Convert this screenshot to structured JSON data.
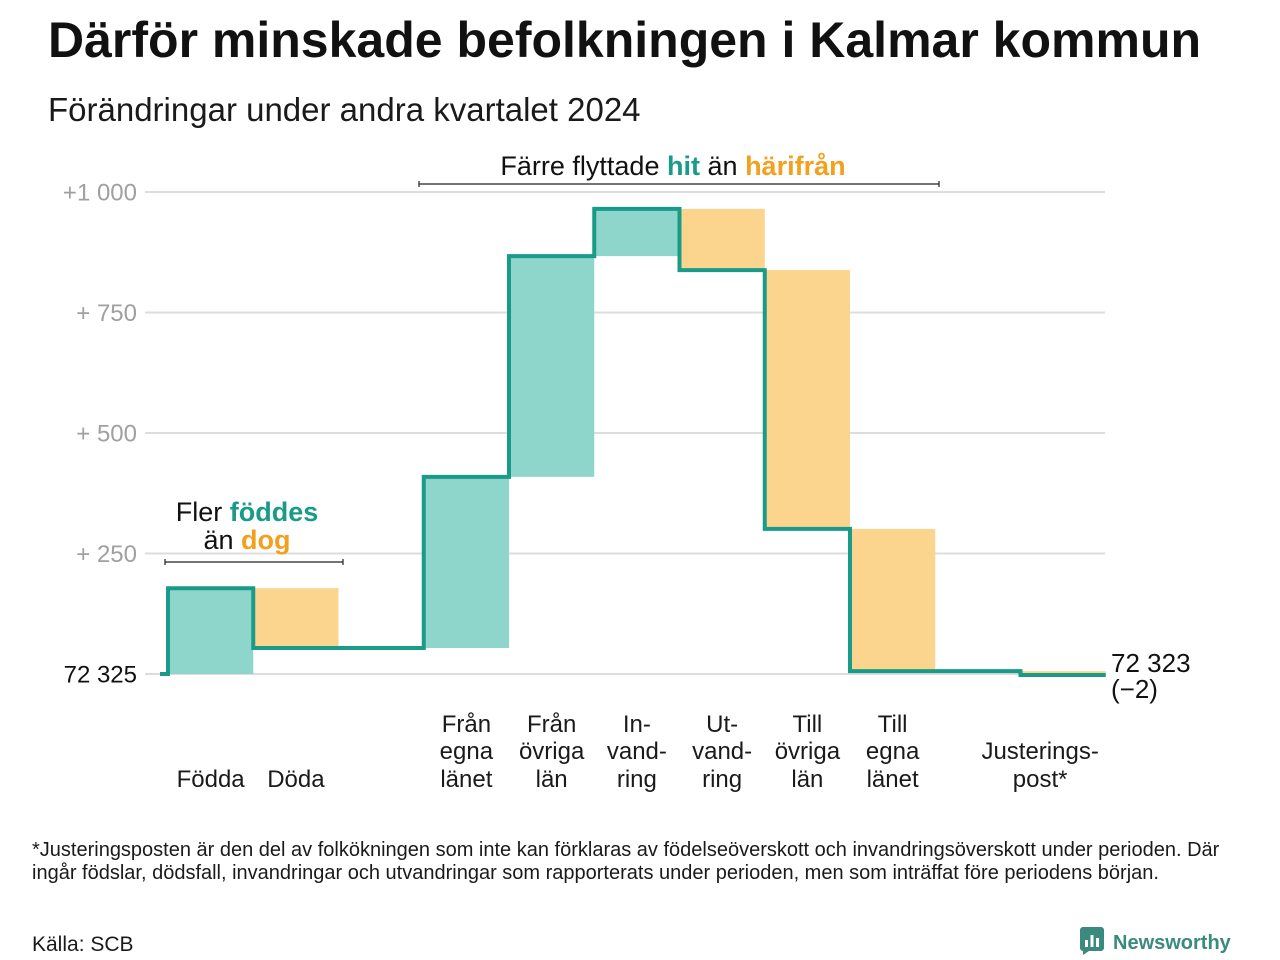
{
  "title": "Därför minskade befolkningen i Kalmar kommun",
  "subtitle": "Förändringar under andra kvartalet 2024",
  "chart_data": {
    "type": "bar",
    "waterfall": true,
    "start_value": 72325,
    "start_label": "72 325",
    "categories": [
      "Födda",
      "Döda",
      "Från\negna\nlänet",
      "Från\növriga\nlän",
      "In-\nvand-\nring",
      "Ut-\nvand-\nring",
      "Till\növriga\nlän",
      "Till\negna\nlänet",
      "Justerings-\npost*"
    ],
    "values": [
      178,
      -124,
      355,
      458,
      98,
      -127,
      -537,
      -295,
      -8
    ],
    "ylim": [
      0,
      1000
    ],
    "yticks": [
      {
        "value": 1000,
        "label": "+1 000"
      },
      {
        "value": 750,
        "label": "+ 750"
      },
      {
        "value": 500,
        "label": "+ 500"
      },
      {
        "value": 250,
        "label": "+ 250"
      }
    ],
    "end_value": 72323,
    "end_label": "72 323",
    "end_change_label": "(−2)",
    "grid": true,
    "annotations": {
      "births": {
        "prefix": "Fler",
        "highlight_in": "föddes",
        "middle": "än",
        "highlight_out": "dog"
      },
      "moves": {
        "prefix": "Färre flyttade",
        "highlight_in": "hit",
        "middle": "än",
        "highlight_out": "härifrån"
      }
    },
    "colors": {
      "increase": "#8ed5cb",
      "decrease": "#fbd58e",
      "line": "#1a9a88",
      "highlight_in": "#1a9a88",
      "highlight_out": "#f2a01e",
      "grid": "#dddddd",
      "tick": "#a0a0a0"
    }
  },
  "footnote": "*Justeringsposten är den del av folkökningen som inte kan förklaras av födelseöverskott och invandringsöverskott under perioden. Där ingår födslar, dödsfall, invandringar och utvandringar som rapporterats under perioden, men som inträffat före periodens början.",
  "source": "Källa: SCB",
  "logo": {
    "text": "Newsworthy",
    "icon": "newsworthy-chart-bubble-icon",
    "color": "#3a8a7e"
  }
}
